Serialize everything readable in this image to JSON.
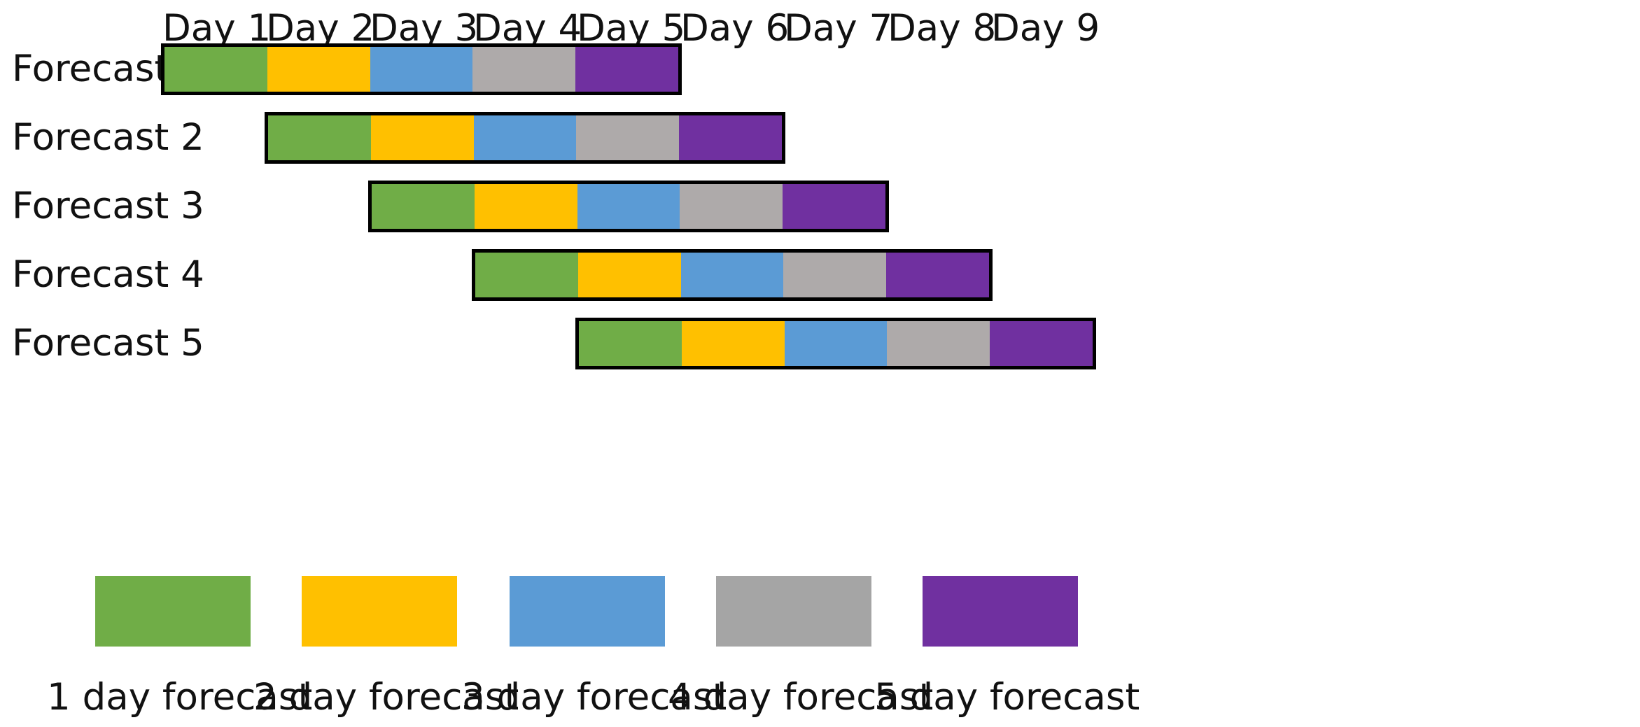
{
  "days": [
    "Day 1",
    "Day 2",
    "Day 3",
    "Day 4",
    "Day 5",
    "Day 6",
    "Day 7",
    "Day 8",
    "Day 9"
  ],
  "forecasts": [
    {
      "label": "Forecast 1",
      "start_day": 1
    },
    {
      "label": "Forecast 2",
      "start_day": 2
    },
    {
      "label": "Forecast 3",
      "start_day": 3
    },
    {
      "label": "Forecast 4",
      "start_day": 4
    },
    {
      "label": "Forecast 5",
      "start_day": 5
    }
  ],
  "horizons": [
    {
      "label": "1 day forecast",
      "color": "#70ad47",
      "legend_color": "#70ad47"
    },
    {
      "label": "2 day forecast",
      "color": "#ffc000",
      "legend_color": "#ffc000"
    },
    {
      "label": "3 day forecast",
      "color": "#5b9bd5",
      "legend_color": "#5b9bd5"
    },
    {
      "label": "4 day forecast",
      "color": "#aeaaaa",
      "legend_color": "#a5a5a5"
    },
    {
      "label": "5 day forecast",
      "color": "#7030a0",
      "legend_color": "#7030a0"
    }
  ]
}
